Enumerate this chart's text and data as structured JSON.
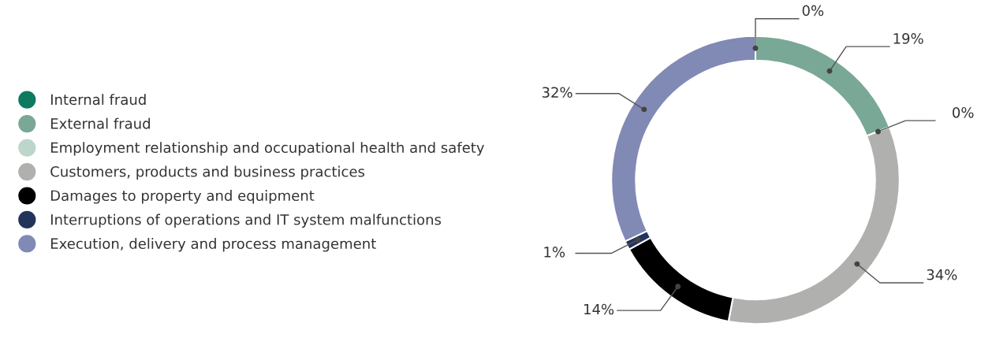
{
  "chart_data": {
    "type": "donut",
    "categories": [
      "Internal fraud",
      "External fraud",
      "Employment relationship and occupational health and safety",
      "Customers, products and business practices",
      "Damages to property and equipment",
      "Interruptions of operations and IT system malfunctions",
      "Execution, delivery and process management"
    ],
    "values": [
      0,
      19,
      0,
      34,
      14,
      1,
      32
    ],
    "colors": [
      "#0e7a5f",
      "#79a896",
      "#bcd6cc",
      "#b0b0af",
      "#000000",
      "#23345c",
      "#8189b5"
    ],
    "value_labels": [
      "0%",
      "19%",
      "0%",
      "34%",
      "14%",
      "1%",
      "32%"
    ],
    "legend": "left"
  }
}
